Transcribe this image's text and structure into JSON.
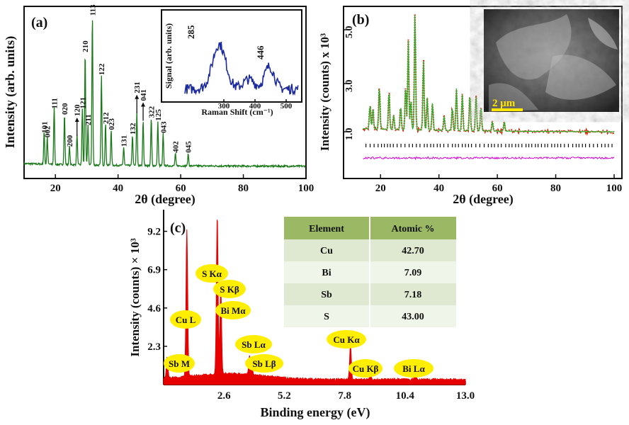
{
  "chart_data": [
    {
      "panel_label": "(a)",
      "type": "line",
      "xlabel": "2θ (degree)",
      "ylabel": "Intensity (arb. units)",
      "xlim": [
        10,
        100
      ],
      "x_ticks": [
        "20",
        "40",
        "60",
        "80",
        "100"
      ],
      "series_color": "#1a7a1a",
      "peaks": [
        {
          "x": 16.4,
          "h": 0.21,
          "label": "101"
        },
        {
          "x": 17.4,
          "h": 0.18,
          "label": "002"
        },
        {
          "x": 19.6,
          "h": 0.37,
          "label": "111"
        },
        {
          "x": 22.9,
          "h": 0.33,
          "label": "020"
        },
        {
          "x": 24.5,
          "h": 0.12,
          "label": "200"
        },
        {
          "x": 26.9,
          "h": 0.2,
          "label": "120"
        },
        {
          "x": 28.6,
          "h": 0.37,
          "label": "121"
        },
        {
          "x": 29.5,
          "h": 0.74,
          "label": "210"
        },
        {
          "x": 30.4,
          "h": 0.26,
          "label": "211"
        },
        {
          "x": 31.8,
          "h": 0.98,
          "label": "113"
        },
        {
          "x": 34.7,
          "h": 0.59,
          "label": "122"
        },
        {
          "x": 36.0,
          "h": 0.27,
          "label": "212"
        },
        {
          "x": 37.8,
          "h": 0.23,
          "label": "023"
        },
        {
          "x": 41.8,
          "h": 0.12,
          "label": "131"
        },
        {
          "x": 44.6,
          "h": 0.2,
          "label": "132"
        },
        {
          "x": 46.0,
          "h": 0.35,
          "label": "231"
        },
        {
          "x": 48.0,
          "h": 0.3,
          "label": "041"
        },
        {
          "x": 50.6,
          "h": 0.31,
          "label": "322"
        },
        {
          "x": 52.7,
          "h": 0.29,
          "label": "125"
        },
        {
          "x": 54.4,
          "h": 0.21,
          "label": "043"
        },
        {
          "x": 58.3,
          "h": 0.08,
          "label": "402"
        },
        {
          "x": 62.4,
          "h": 0.08,
          "label": "045"
        }
      ],
      "inset": {
        "type": "line",
        "xlabel": "Raman Shift (cm⁻¹)",
        "ylabel": "Signal (arb. units)",
        "xlim": [
          150,
          550
        ],
        "x_ticks": [
          "300",
          "400",
          "500"
        ],
        "series_color": "#1b2aa0",
        "peak_labels": [
          "285",
          "446"
        ],
        "peaks": [
          {
            "x": 285,
            "h": 0.7
          },
          {
            "x": 446,
            "h": 0.35
          }
        ]
      }
    },
    {
      "panel_label": "(b)",
      "type": "line",
      "xlabel": "2θ (degree)",
      "ylabel": "Intensity (counts) x 10³",
      "xlim": [
        10,
        100
      ],
      "x_ticks": [
        "20",
        "40",
        "60",
        "80",
        "100"
      ],
      "y_ticks": [
        "1.0",
        "3.0",
        "5.0"
      ],
      "colors": {
        "observed": "#d62000",
        "calculated": "#27b22b",
        "bragg": "#111111",
        "difference": "#d400d4"
      },
      "inset_scale_label": "2 μm"
    },
    {
      "panel_label": "(c)",
      "type": "bar",
      "xlabel": "Binding energy (eV)",
      "ylabel": "Intensity (counts) × 10³",
      "xlim": [
        0,
        13.0
      ],
      "ylim": [
        0,
        10.5
      ],
      "x_ticks": [
        "2.6",
        "5.2",
        "7.8",
        "10.4",
        "13.0"
      ],
      "y_ticks": [
        "2.3",
        "4.6",
        "6.9",
        "9.2"
      ],
      "series_color": "#e60000",
      "peaks": [
        {
          "x": 0.15,
          "y": 1.3
        },
        {
          "x": 1.0,
          "y": 8.8
        },
        {
          "x": 2.31,
          "y": 9.6
        },
        {
          "x": 2.46,
          "y": 5.2
        },
        {
          "x": 3.7,
          "y": 1.1
        },
        {
          "x": 3.8,
          "y": 0.6
        },
        {
          "x": 8.05,
          "y": 2.1
        },
        {
          "x": 8.9,
          "y": 0.3
        },
        {
          "x": 10.84,
          "y": 0.35
        }
      ],
      "labels": [
        "Cu L",
        "S Kα",
        "S Kβ",
        "Bi Mα",
        "Sb Lα",
        "Sb Lβ",
        "Sb M",
        "Cu Kα",
        "Cu Kβ",
        "Bi Lα"
      ],
      "label_color": "#ffee00",
      "table": {
        "header": [
          "Element",
          "Atomic %"
        ],
        "rows": [
          [
            "Cu",
            "42.70"
          ],
          [
            "Bi",
            "7.09"
          ],
          [
            "Sb",
            "7.18"
          ],
          [
            "S",
            "43.00"
          ]
        ],
        "header_color": "#9bb964",
        "row_color_a": "#dfe8d0",
        "row_color_b": "#f0f5e9"
      }
    }
  ]
}
